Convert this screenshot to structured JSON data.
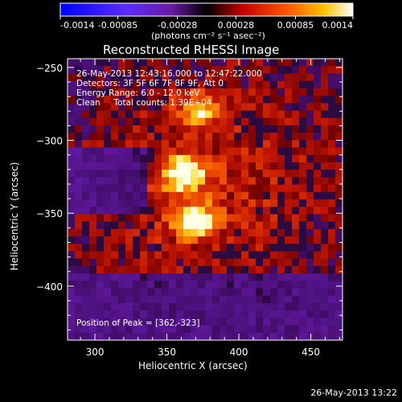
{
  "colorbar": {
    "ticks": [
      "-0.0014",
      "-0.00085",
      "-0.00028",
      "0.00028",
      "0.00085",
      "0.0014"
    ],
    "tick_values": [
      -0.0014,
      -0.00085,
      -0.00028,
      0.00028,
      0.00085,
      0.0014
    ],
    "units": "(photons cm⁻² s⁻¹ asec⁻²)"
  },
  "chart_data": {
    "type": "heatmap",
    "title": "Reconstructed RHESSI Image",
    "xlabel": "Heliocentric X (arcsec)",
    "ylabel": "Heliocentric Y (arcsec)",
    "xlim": [
      281,
      472
    ],
    "ylim": [
      -437,
      -244
    ],
    "x_ticks": [
      300,
      350,
      400,
      450
    ],
    "y_ticks": [
      -250,
      -300,
      -350,
      -400
    ],
    "value_range": [
      -0.0014,
      0.0014
    ],
    "colormap": "rhessi-hot (purple-blue negative, red-orange-yellow-white positive)",
    "sources": [
      {
        "x": 362,
        "y": -323,
        "peak": 0.0014
      },
      {
        "x": 368,
        "y": -355,
        "peak": 0.0013
      },
      {
        "x": 372,
        "y": -280,
        "peak": 0.001
      }
    ],
    "peak_position": [
      362,
      -323
    ]
  },
  "overlay": {
    "line1": "26-May-2013 12:43:16.000 to 12:47:22.000",
    "line2": "Detectors: 3F 5F 6F 7F 8F 9F, Att 0",
    "line3": "Energy Range: 6.0 - 12.0 keV",
    "line4": "Clean     Total counts: 1.39E+04",
    "peak_text": "Position of Peak = [362,-323]"
  },
  "timestamp": "26-May-2013 13:22",
  "colors": {
    "background": "#000000",
    "text": "#ffffff"
  }
}
